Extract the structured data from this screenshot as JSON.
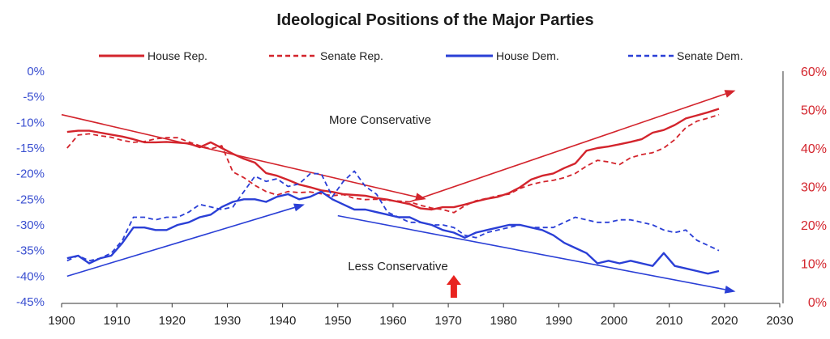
{
  "chart_data": {
    "type": "line",
    "title": "Ideological Positions of the Major Parties",
    "x_ticks": [
      "1900",
      "1910",
      "1920",
      "1930",
      "1940",
      "1950",
      "1960",
      "1970",
      "1980",
      "1990",
      "2000",
      "2010",
      "2020",
      "2030"
    ],
    "y_left_ticks": [
      "0%",
      "-5%",
      "-10%",
      "-15%",
      "-20%",
      "-25%",
      "-30%",
      "-35%",
      "-40%",
      "-45%"
    ],
    "y_right_ticks": [
      "60%",
      "50%",
      "40%",
      "30%",
      "20%",
      "10%",
      "0%"
    ],
    "xlim": [
      1900,
      2030
    ],
    "ylim_left": [
      -45,
      0
    ],
    "ylim_right": [
      0,
      60
    ],
    "legend_position": "top",
    "colors": {
      "rep": "#d3242c",
      "dem": "#2a3fd6",
      "highlight": "#e8231f"
    },
    "annotations": {
      "upper": "More Conservative",
      "lower": "Less Conservative"
    },
    "series": [
      {
        "name": "House Rep.",
        "axis": "right",
        "color": "#d3242c",
        "style": "solid",
        "x": [
          1901,
          1903,
          1905,
          1907,
          1909,
          1911,
          1913,
          1915,
          1917,
          1919,
          1921,
          1923,
          1925,
          1927,
          1929,
          1931,
          1933,
          1935,
          1937,
          1939,
          1941,
          1943,
          1945,
          1947,
          1949,
          1951,
          1953,
          1955,
          1957,
          1959,
          1961,
          1963,
          1965,
          1967,
          1969,
          1971,
          1973,
          1975,
          1977,
          1979,
          1981,
          1983,
          1985,
          1987,
          1989,
          1991,
          1993,
          1995,
          1997,
          1999,
          2001,
          2003,
          2005,
          2007,
          2009,
          2011,
          2013,
          2015,
          2017,
          2019
        ],
        "values": [
          44.2,
          44.5,
          44.5,
          44.0,
          43.5,
          43.0,
          42.3,
          41.5,
          41.5,
          41.6,
          41.4,
          41.2,
          40.2,
          41.5,
          40.0,
          38.5,
          37.2,
          36.2,
          33.5,
          32.8,
          31.7,
          30.5,
          29.8,
          29.0,
          28.6,
          28.0,
          27.8,
          27.6,
          27.0,
          26.6,
          26.0,
          25.4,
          24.3,
          24.0,
          24.6,
          24.6,
          25.3,
          26.1,
          26.8,
          27.3,
          28.3,
          29.8,
          31.8,
          32.8,
          33.4,
          34.8,
          36.0,
          39.3,
          40.0,
          40.4,
          41.0,
          41.6,
          42.3,
          44.0,
          44.7,
          46.0,
          47.7,
          48.5,
          49.3,
          50.2
        ]
      },
      {
        "name": "Senate Rep.",
        "axis": "right",
        "color": "#d3242c",
        "style": "dashed",
        "x": [
          1901,
          1903,
          1905,
          1907,
          1909,
          1911,
          1913,
          1915,
          1917,
          1919,
          1921,
          1923,
          1925,
          1927,
          1929,
          1931,
          1933,
          1935,
          1937,
          1939,
          1941,
          1943,
          1945,
          1947,
          1949,
          1951,
          1953,
          1955,
          1957,
          1959,
          1961,
          1963,
          1965,
          1967,
          1969,
          1971,
          1973,
          1975,
          1977,
          1979,
          1981,
          1983,
          1985,
          1987,
          1989,
          1991,
          1993,
          1995,
          1997,
          1999,
          2001,
          2003,
          2005,
          2007,
          2009,
          2011,
          2013,
          2015,
          2017,
          2019
        ],
        "values": [
          40.0,
          43.4,
          43.7,
          43.2,
          42.8,
          42.0,
          41.5,
          41.7,
          42.4,
          42.7,
          42.7,
          41.6,
          40.6,
          39.8,
          40.6,
          33.8,
          32.3,
          30.3,
          28.7,
          27.8,
          28.7,
          28.4,
          28.6,
          28.1,
          27.6,
          27.9,
          26.9,
          26.6,
          26.7,
          26.4,
          26.2,
          26.0,
          25.1,
          24.4,
          24.0,
          23.2,
          25.0,
          26.3,
          26.9,
          27.6,
          28.0,
          29.5,
          30.5,
          31.2,
          31.6,
          32.3,
          33.4,
          35.3,
          36.8,
          36.4,
          35.7,
          37.5,
          38.3,
          38.8,
          40.0,
          42.2,
          45.3,
          47.0,
          47.8,
          48.7
        ]
      },
      {
        "name": "House Dem.",
        "axis": "left",
        "color": "#2a3fd6",
        "style": "solid",
        "x": [
          1901,
          1903,
          1905,
          1907,
          1909,
          1911,
          1913,
          1915,
          1917,
          1919,
          1921,
          1923,
          1925,
          1927,
          1929,
          1931,
          1933,
          1935,
          1937,
          1939,
          1941,
          1943,
          1945,
          1947,
          1949,
          1951,
          1953,
          1955,
          1957,
          1959,
          1961,
          1963,
          1965,
          1967,
          1969,
          1971,
          1973,
          1975,
          1977,
          1979,
          1981,
          1983,
          1985,
          1987,
          1989,
          1991,
          1993,
          1995,
          1997,
          1999,
          2001,
          2003,
          2005,
          2007,
          2009,
          2011,
          2013,
          2015,
          2017,
          2019
        ],
        "values": [
          -36.5,
          -36.0,
          -37.5,
          -36.5,
          -36.0,
          -33.5,
          -30.5,
          -30.5,
          -31.0,
          -31.0,
          -30.0,
          -29.5,
          -28.5,
          -28.0,
          -26.5,
          -25.5,
          -25.0,
          -25.0,
          -25.5,
          -24.5,
          -24.0,
          -25.0,
          -24.5,
          -23.5,
          -25.0,
          -26.0,
          -27.0,
          -27.0,
          -27.5,
          -28.0,
          -28.5,
          -28.5,
          -29.5,
          -30.0,
          -31.0,
          -31.5,
          -32.5,
          -31.5,
          -31.0,
          -30.5,
          -30.0,
          -30.0,
          -30.5,
          -31.0,
          -32.0,
          -33.5,
          -34.5,
          -35.5,
          -37.5,
          -37.0,
          -37.5,
          -37.0,
          -37.5,
          -38.0,
          -35.5,
          -38.0,
          -38.5,
          -39.0,
          -39.5,
          -39.0
        ]
      },
      {
        "name": "Senate Dem.",
        "axis": "left",
        "color": "#2a3fd6",
        "style": "dashed",
        "x": [
          1901,
          1903,
          1905,
          1907,
          1909,
          1911,
          1913,
          1915,
          1917,
          1919,
          1921,
          1923,
          1925,
          1927,
          1929,
          1931,
          1933,
          1935,
          1937,
          1939,
          1941,
          1943,
          1945,
          1947,
          1949,
          1951,
          1953,
          1955,
          1957,
          1959,
          1961,
          1963,
          1965,
          1967,
          1969,
          1971,
          1973,
          1975,
          1977,
          1979,
          1981,
          1983,
          1985,
          1987,
          1989,
          1991,
          1993,
          1995,
          1997,
          1999,
          2001,
          2003,
          2005,
          2007,
          2009,
          2011,
          2013,
          2015,
          2017,
          2019
        ],
        "values": [
          -37.0,
          -36.0,
          -37.0,
          -36.5,
          -35.5,
          -33.0,
          -28.5,
          -28.5,
          -29.0,
          -28.5,
          -28.5,
          -27.5,
          -26.0,
          -26.5,
          -27.0,
          -26.5,
          -23.5,
          -20.5,
          -21.5,
          -21.0,
          -22.5,
          -22.0,
          -20.0,
          -20.0,
          -24.5,
          -21.5,
          -19.5,
          -22.5,
          -24.0,
          -27.5,
          -28.5,
          -29.5,
          -29.5,
          -30.0,
          -30.0,
          -30.5,
          -32.0,
          -32.5,
          -31.5,
          -31.0,
          -30.5,
          -30.0,
          -30.5,
          -30.5,
          -30.5,
          -29.5,
          -28.5,
          -29.0,
          -29.5,
          -29.5,
          -29.0,
          -29.0,
          -29.5,
          -30.0,
          -31.0,
          -31.5,
          -31.0,
          -33.0,
          -34.0,
          -35.0
        ]
      }
    ],
    "trend_arrows": [
      {
        "color": "#d3242c",
        "axis": "right",
        "from": [
          1900,
          48.7
        ],
        "to": [
          1966,
          26.7
        ]
      },
      {
        "color": "#d3242c",
        "axis": "right",
        "from": [
          1963,
          26.0
        ],
        "to": [
          2022,
          55.0
        ]
      },
      {
        "color": "#2a3fd6",
        "axis": "left",
        "from": [
          1901,
          -40.0
        ],
        "to": [
          1944,
          -26.0
        ]
      },
      {
        "color": "#2a3fd6",
        "axis": "left",
        "from": [
          1950,
          -28.2
        ],
        "to": [
          2022,
          -43.0
        ]
      }
    ],
    "highlight_x": 1971
  }
}
